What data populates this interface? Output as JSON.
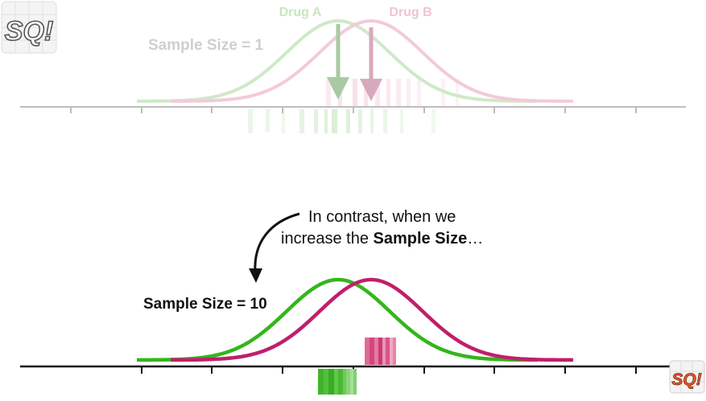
{
  "top_panel": {
    "drug_a_label": "Drug A",
    "drug_b_label": "Drug B",
    "sample_size_label": "Sample Size = 1",
    "faded": true
  },
  "bottom_panel": {
    "sample_size_label": "Sample Size = 10",
    "annotation_line1": "In contrast, when we",
    "annotation_line2_prefix": "increase the ",
    "annotation_line2_bold": "Sample Size",
    "annotation_line2_suffix": "…"
  },
  "logos": {
    "top_left_text": "SQ!",
    "bottom_right_text": "SQ!"
  },
  "colors": {
    "drug_a": "#33b61c",
    "drug_b": "#c01f6b",
    "drug_a_faded": "#c9e8c2",
    "drug_b_faded": "#f3c6d8",
    "axis": "#111111",
    "axis_faded": "#b5b5b5",
    "text": "#111111",
    "text_faded": "#cfcfcf"
  }
}
